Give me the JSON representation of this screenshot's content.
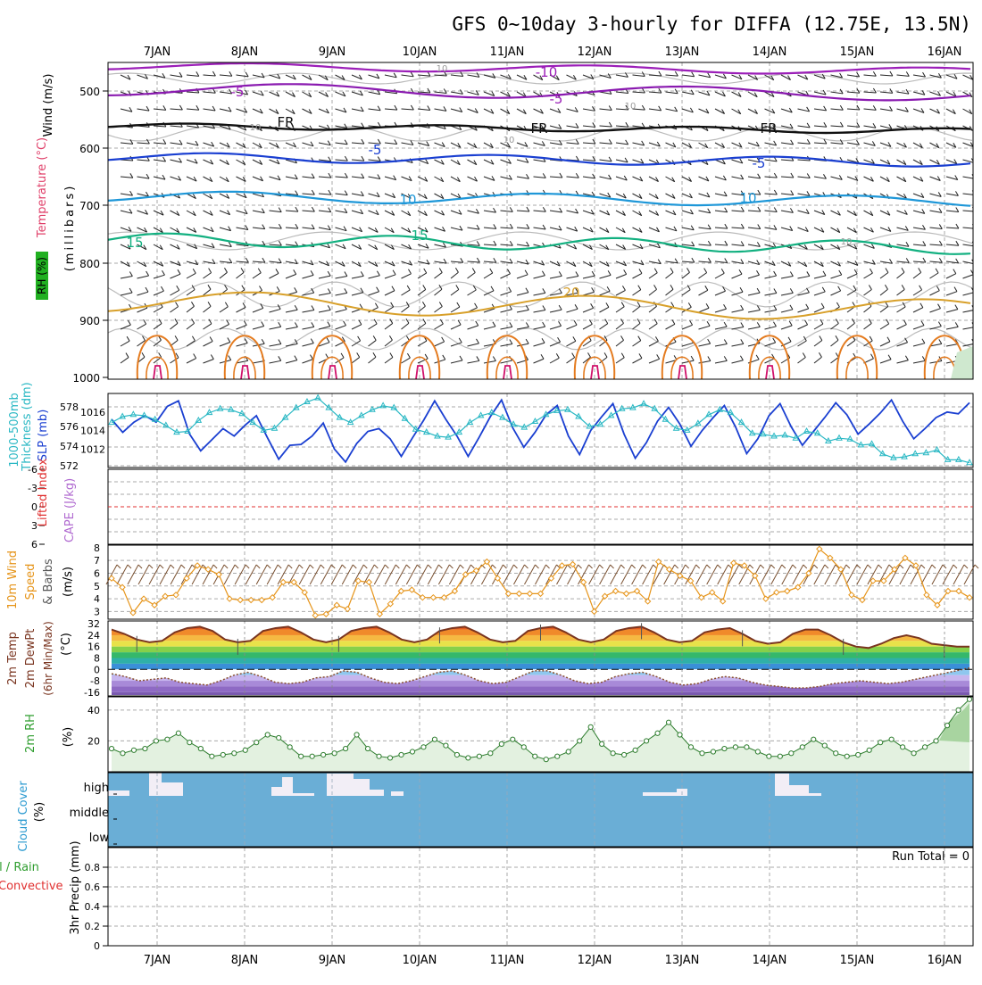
{
  "title": "GFS 0~10day 3-hourly for DIFFA (12.75E, 13.5N)",
  "dates": [
    "7JAN",
    "8JAN",
    "9JAN",
    "10JAN",
    "11JAN",
    "12JAN",
    "13JAN",
    "14JAN",
    "15JAN",
    "16JAN"
  ],
  "colors": {
    "grid": "#aaaaaa",
    "slp": "#1a3fd1",
    "thickness": "#2ab8c4",
    "wind": "#e69419",
    "rh": "#2e9d2e",
    "lifted": "#e03030",
    "cape": "#b06ad0",
    "cloud": "#6aaed6",
    "tempLine": "#7a3520"
  },
  "panels": {
    "upper": {
      "label_wind": "Wind (m/s)",
      "label_temp": "Temperature (°C)",
      "label_rh": "RH (%)",
      "label_mb": "(millibars)",
      "yticks": [
        "500",
        "600",
        "700",
        "800",
        "900",
        "1000"
      ],
      "contour_labels": [
        "-10",
        "-5",
        "-5",
        "FR",
        "FR",
        "FR",
        "-5",
        "-5",
        "10",
        "10",
        "15",
        "15",
        "20",
        "10",
        "10",
        "10",
        "10",
        "10"
      ]
    },
    "slp": {
      "label_thick": "Thickness (dm)",
      "label_thick2": "1000-500mb",
      "label_slp": "SLP (mb)",
      "thick_ticks": [
        "578",
        "576",
        "574",
        "572"
      ],
      "slp_ticks": [
        "1016",
        "1014",
        "1012"
      ]
    },
    "li": {
      "label_li": "Lifted Index",
      "label_cape": "CAPE (J/kg)",
      "ticks": [
        "-6",
        "-3",
        "0",
        "3",
        "6"
      ]
    },
    "wind10": {
      "label1": "10m Wind",
      "label2": "Speed",
      "label3": "& Barbs",
      "label4": "(m/s)",
      "ticks": [
        "8",
        "7",
        "6",
        "5",
        "4",
        "3"
      ]
    },
    "temp2m": {
      "label1": "2m Temp",
      "label2": "2m DewPt",
      "label3": "(6hr Min/Max)",
      "label4": "(°C)",
      "ticks": [
        "32",
        "24",
        "16",
        "8",
        "0",
        "-8",
        "-16"
      ]
    },
    "rh2m": {
      "label1": "2m RH",
      "label2": "(%)",
      "ticks": [
        "40",
        "20"
      ]
    },
    "cloud": {
      "label1": "Cloud Cover",
      "label2": "(%)",
      "levels": [
        "high",
        "middle",
        "low"
      ]
    },
    "precip": {
      "label1": "tal / Rain",
      "label2": "Convective",
      "label3": "3hr Precip (mm)",
      "run_total": "Run Total = 0",
      "ticks": [
        "0.8",
        "0.6",
        "0.4",
        "0.2",
        "0"
      ]
    }
  },
  "chart_data": [
    {
      "type": "line",
      "title": "1000-500mb Thickness (dm) / SLP (mb)",
      "series": [
        {
          "name": "SLP (mb)",
          "values": [
            1015.2,
            1013.8,
            1014.9,
            1015.6,
            1014.9,
            1016.6,
            1017.2,
            1013.6,
            1011.8,
            1013.0,
            1014.2,
            1013.4,
            1014.6,
            1015.6,
            1013.2,
            1010.9,
            1012.4,
            1012.5,
            1013.4,
            1014.8,
            1012.0,
            1010.6,
            1012.6,
            1013.9,
            1014.2,
            1013.1,
            1011.2,
            1013.2,
            1015.1,
            1017.2,
            1015.2,
            1013.4,
            1011.2,
            1013.3,
            1015.5,
            1017.3,
            1014.3,
            1012.2,
            1013.8,
            1015.7,
            1016.7,
            1013.4,
            1011.4,
            1014.0,
            1015.5,
            1016.9,
            1013.6,
            1011.0,
            1012.7,
            1015.0,
            1016.5,
            1014.7,
            1012.3,
            1014.0,
            1015.4,
            1016.7,
            1014.4,
            1011.5,
            1013.1,
            1015.6,
            1016.9,
            1014.4,
            1012.4,
            1013.9,
            1015.4,
            1017.0,
            1015.7,
            1013.6,
            1014.7,
            1015.9,
            1017.3,
            1015.0,
            1013.1,
            1014.2,
            1015.4,
            1016.0,
            1015.8,
            1017.0
          ]
        },
        {
          "name": "Thickness (dm)",
          "values": [
            576.4,
            577.0,
            577.2,
            577.1,
            576.7,
            576.1,
            575.4,
            575.5,
            576.6,
            577.4,
            577.8,
            577.7,
            577.3,
            576.4,
            575.6,
            575.8,
            576.9,
            577.9,
            578.5,
            578.9,
            577.9,
            576.9,
            576.4,
            577.1,
            577.7,
            578.1,
            577.9,
            576.8,
            575.7,
            575.4,
            575.0,
            574.9,
            575.4,
            576.4,
            577.1,
            577.4,
            576.9,
            576.2,
            575.9,
            576.5,
            577.2,
            577.6,
            577.7,
            577.0,
            576.0,
            576.2,
            577.1,
            577.8,
            577.9,
            578.3,
            577.8,
            576.7,
            575.8,
            575.6,
            576.3,
            577.2,
            577.7,
            577.4,
            576.4,
            575.3,
            575.2,
            575.0,
            575.1,
            574.8,
            575.5,
            575.3,
            574.5,
            574.8,
            574.7,
            574.1,
            574.2,
            573.2,
            572.8,
            572.9,
            573.2,
            573.3,
            573.6,
            572.6,
            572.6,
            572.3
          ]
        }
      ],
      "ylim": [
        1010,
        1018
      ]
    },
    {
      "type": "line",
      "title": "10m Wind Speed (m/s)",
      "series": [
        {
          "name": "10m Wind Speed",
          "values": [
            5.6,
            4.9,
            2.9,
            4.0,
            3.5,
            4.2,
            4.3,
            5.6,
            6.6,
            6.3,
            5.9,
            4.0,
            3.9,
            3.9,
            3.9,
            4.1,
            5.3,
            5.3,
            4.5,
            2.7,
            2.8,
            3.5,
            3.2,
            5.4,
            5.3,
            2.8,
            3.6,
            4.6,
            4.7,
            4.1,
            4.1,
            4.1,
            4.6,
            5.9,
            6.2,
            6.9,
            5.6,
            4.4,
            4.4,
            4.4,
            4.4,
            5.6,
            6.6,
            6.7,
            5.3,
            3.0,
            4.2,
            4.6,
            4.4,
            4.6,
            3.8,
            6.9,
            6.3,
            5.8,
            5.4,
            4.1,
            4.5,
            3.8,
            6.8,
            6.6,
            5.8,
            4.0,
            4.5,
            4.6,
            4.9,
            6.0,
            7.9,
            7.2,
            6.3,
            4.3,
            3.9,
            5.4,
            5.4,
            6.3,
            7.2,
            6.6,
            4.3,
            3.5,
            4.6,
            4.6,
            4.1
          ]
        }
      ],
      "ylim": [
        3,
        8
      ]
    },
    {
      "type": "area",
      "title": "2m Temp / 2m DewPt (°C)",
      "series": [
        {
          "name": "2m Temp",
          "values": [
            28,
            25,
            21,
            19,
            20,
            26,
            29,
            30,
            27,
            21,
            19,
            20,
            27,
            29,
            30,
            26,
            21,
            19,
            21,
            27,
            29,
            30,
            26,
            21,
            19,
            21,
            27,
            29,
            30,
            26,
            21,
            19,
            20,
            27,
            29,
            30,
            26,
            21,
            19,
            21,
            27,
            29,
            30,
            26,
            21,
            19,
            20,
            26,
            28,
            29,
            25,
            20,
            18,
            19,
            25,
            28,
            28,
            24,
            19,
            16,
            15,
            18,
            22,
            24,
            22,
            18,
            17,
            16,
            16
          ]
        },
        {
          "name": "2m DewPt",
          "values": [
            -3,
            -5,
            -8,
            -7,
            -6,
            -9,
            -10,
            -11,
            -8,
            -4,
            -2,
            -5,
            -9,
            -10,
            -9,
            -6,
            -5,
            -1,
            -2,
            -6,
            -9,
            -10,
            -8,
            -5,
            -2,
            -1,
            -4,
            -8,
            -10,
            -9,
            -5,
            -1,
            -1,
            -4,
            -8,
            -10,
            -9,
            -5,
            -3,
            -2,
            -5,
            -9,
            -11,
            -10,
            -7,
            -5,
            -6,
            -9,
            -11,
            -12,
            -13,
            -13,
            -12,
            -10,
            -9,
            -8,
            -9,
            -10,
            -9,
            -7,
            -5,
            -3,
            -1,
            1
          ]
        }
      ],
      "ylim": [
        -16,
        32
      ]
    },
    {
      "type": "area",
      "title": "2m RH (%)",
      "series": [
        {
          "name": "2m RH",
          "values": [
            15,
            12,
            14,
            15,
            20,
            21,
            25,
            19,
            15,
            10,
            11,
            12,
            14,
            19,
            24,
            22,
            16,
            10,
            10,
            11,
            12,
            15,
            24,
            15,
            10,
            9,
            11,
            13,
            16,
            21,
            17,
            11,
            9,
            10,
            12,
            18,
            21,
            16,
            10,
            8,
            10,
            13,
            20,
            29,
            18,
            12,
            11,
            14,
            20,
            25,
            32,
            24,
            16,
            12,
            13,
            15,
            16,
            16,
            13,
            10,
            10,
            12,
            16,
            21,
            17,
            12,
            10,
            11,
            14,
            19,
            21,
            16,
            12,
            16,
            20,
            30,
            40,
            47
          ]
        }
      ],
      "ylim": [
        0,
        48
      ]
    },
    {
      "type": "line",
      "title": "3hr Precip (mm)",
      "series": [
        {
          "name": "3hr Precip",
          "values": [
            0,
            0,
            0,
            0,
            0,
            0,
            0,
            0,
            0,
            0
          ]
        }
      ],
      "ylim": [
        0,
        1
      ]
    }
  ]
}
